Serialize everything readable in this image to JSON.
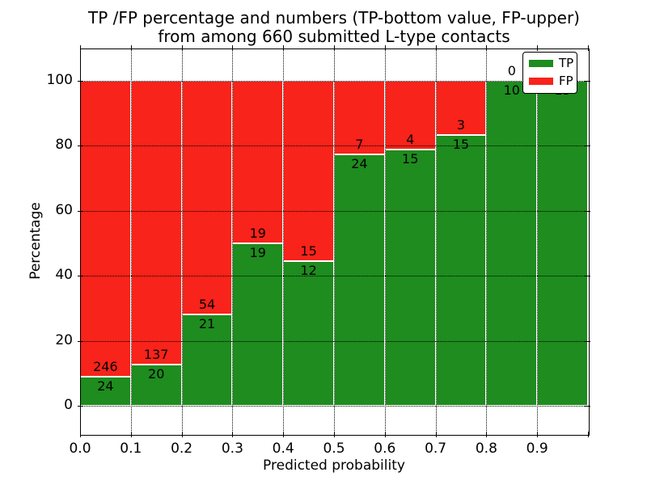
{
  "title": {
    "line1": "TP /FP percentage and numbers (TP-bottom value, FP-upper)",
    "line2": "from among 660 submitted L-type contacts"
  },
  "axes": {
    "xlabel": "Predicted probability",
    "ylabel": "Percentage",
    "xtick_labels": [
      "0.0",
      "0.1",
      "0.2",
      "0.3",
      "0.4",
      "0.5",
      "0.6",
      "0.7",
      "0.8",
      "0.9"
    ],
    "ytick_labels": [
      "0",
      "20",
      "40",
      "60",
      "80",
      "100"
    ],
    "ytick_values": [
      0,
      20,
      40,
      60,
      80,
      100
    ],
    "grid": "dotted"
  },
  "legend": {
    "position": "upper-right",
    "items": [
      {
        "label": "TP",
        "color": "#1e8c1e"
      },
      {
        "label": "FP",
        "color": "#f8231a"
      }
    ]
  },
  "colors": {
    "tp": "#1e8c1e",
    "fp": "#f8231a",
    "bar_edge": "#ffffff",
    "frame": "#000000",
    "background": "#ffffff"
  },
  "chart_data": {
    "type": "bar",
    "stacked": true,
    "normalized_to": 100,
    "title": "TP /FP percentage and numbers (TP-bottom value, FP-upper) from among 660 submitted L-type contacts",
    "xlabel": "Predicted probability",
    "ylabel": "Percentage",
    "total_contacts": 660,
    "xlim": [
      0.0,
      1.0
    ],
    "ylim_shown": [
      -9,
      110
    ],
    "bin_edges": [
      0.0,
      0.1,
      0.2,
      0.3,
      0.4,
      0.5,
      0.6,
      0.7,
      0.8,
      0.9,
      1.0
    ],
    "categories": [
      "0.0-0.1",
      "0.1-0.2",
      "0.2-0.3",
      "0.3-0.4",
      "0.4-0.5",
      "0.5-0.6",
      "0.6-0.7",
      "0.7-0.8",
      "0.8-0.9",
      "0.9-1.0"
    ],
    "series": [
      {
        "name": "TP",
        "counts": [
          24,
          20,
          21,
          19,
          12,
          24,
          15,
          15,
          10,
          15
        ]
      },
      {
        "name": "FP",
        "counts": [
          246,
          137,
          54,
          19,
          15,
          7,
          4,
          3,
          0,
          0
        ]
      }
    ],
    "tp_percent": [
      8.89,
      12.74,
      28.0,
      50.0,
      44.44,
      77.42,
      78.95,
      83.33,
      100.0,
      100.0
    ],
    "legend_position": "upper right"
  }
}
